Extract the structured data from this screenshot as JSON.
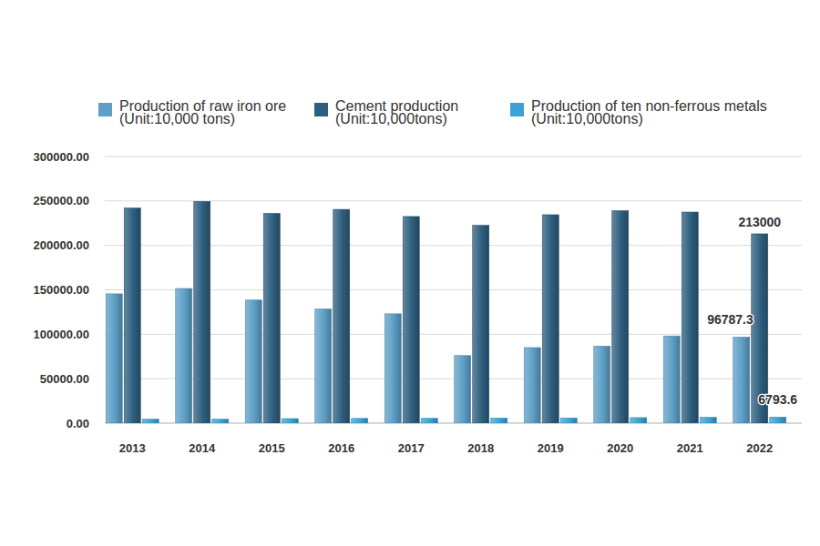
{
  "chart_data": {
    "type": "bar",
    "categories": [
      "2013",
      "2014",
      "2015",
      "2016",
      "2017",
      "2018",
      "2019",
      "2020",
      "2021",
      "2022"
    ],
    "series": [
      {
        "name": "Production of raw iron ore (Unit:10,000 tons)",
        "color": "#5d9fc6",
        "values": [
          145500,
          151500,
          138500,
          128500,
          123000,
          76000,
          85000,
          86700,
          98100,
          96787.3
        ],
        "value_labels": [
          null,
          null,
          null,
          null,
          null,
          null,
          null,
          null,
          null,
          "96787.3"
        ]
      },
      {
        "name": "Cement production (Unit:10,000tons)",
        "color": "#2e5f7f",
        "values": [
          242000,
          249500,
          236000,
          240500,
          232500,
          222500,
          234500,
          239000,
          237500,
          213000
        ],
        "value_labels": [
          null,
          null,
          null,
          null,
          null,
          null,
          null,
          null,
          null,
          "213000"
        ]
      },
      {
        "name": "Production of ten non-ferrous metals (Unit:10,000tons)",
        "color": "#3aa3d6",
        "values": [
          4400,
          4400,
          5100,
          5300,
          5400,
          5700,
          5800,
          6200,
          6500,
          6793.6
        ],
        "value_labels": [
          null,
          null,
          null,
          null,
          null,
          null,
          null,
          null,
          null,
          "6793.6"
        ]
      }
    ],
    "ylim": [
      0,
      300000
    ],
    "yticks": [
      {
        "value": 0,
        "label": "0.00"
      },
      {
        "value": 50000,
        "label": "50000.00"
      },
      {
        "value": 100000,
        "label": "100000.00"
      },
      {
        "value": 150000,
        "label": "150000.00"
      },
      {
        "value": 200000,
        "label": "200000.00"
      },
      {
        "value": 250000,
        "label": "250000.00"
      },
      {
        "value": 300000,
        "label": "300000.00"
      }
    ],
    "grid": true,
    "legend": "top"
  }
}
